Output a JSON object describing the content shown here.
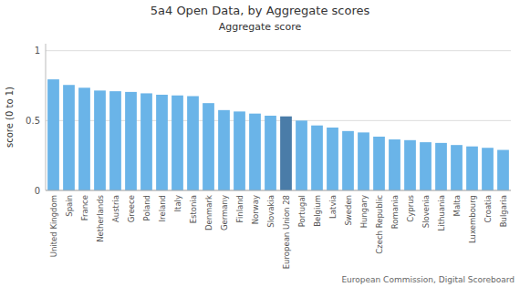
{
  "chart_data": {
    "type": "bar",
    "title": "5a4 Open Data, by Aggregate scores",
    "subtitle": "Aggregate score",
    "ylabel": "score (0 to 1)",
    "source": "European Commission, Digital Scoreboard",
    "ylim": [
      0,
      1.05
    ],
    "yticks": [
      0,
      0.5,
      1
    ],
    "grid": true,
    "categories": [
      "United Kingdom",
      "Spain",
      "France",
      "Netherlands",
      "Austria",
      "Greece",
      "Poland",
      "Ireland",
      "Italy",
      "Estonia",
      "Denmark",
      "Germany",
      "Finland",
      "Norway",
      "Slovakia",
      "European Union 28",
      "Portugal",
      "Belgium",
      "Latvia",
      "Sweden",
      "Hungary",
      "Czech Republic",
      "Romania",
      "Cyprus",
      "Slovenia",
      "Lithuania",
      "Malta",
      "Luxembourg",
      "Croatia",
      "Bulgaria"
    ],
    "values": [
      0.795,
      0.755,
      0.735,
      0.715,
      0.71,
      0.705,
      0.695,
      0.685,
      0.68,
      0.675,
      0.625,
      0.575,
      0.565,
      0.55,
      0.535,
      0.53,
      0.5,
      0.465,
      0.45,
      0.425,
      0.415,
      0.385,
      0.365,
      0.36,
      0.345,
      0.34,
      0.325,
      0.315,
      0.305,
      0.29
    ],
    "colors": [
      "#6ab4e8",
      "#6ab4e8",
      "#6ab4e8",
      "#6ab4e8",
      "#6ab4e8",
      "#6ab4e8",
      "#6ab4e8",
      "#6ab4e8",
      "#6ab4e8",
      "#6ab4e8",
      "#6ab4e8",
      "#6ab4e8",
      "#6ab4e8",
      "#6ab4e8",
      "#6ab4e8",
      "#4a7ca8",
      "#6ab4e8",
      "#6ab4e8",
      "#6ab4e8",
      "#6ab4e8",
      "#6ab4e8",
      "#6ab4e8",
      "#6ab4e8",
      "#6ab4e8",
      "#6ab4e8",
      "#6ab4e8",
      "#6ab4e8",
      "#6ab4e8",
      "#6ab4e8",
      "#6ab4e8"
    ]
  }
}
